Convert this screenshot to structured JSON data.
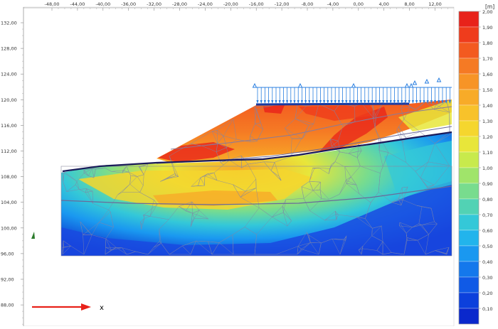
{
  "x_axis": {
    "ticks": [
      "-48,00",
      "-44,00",
      "-40,00",
      "-36,00",
      "-32,00",
      "-28,00",
      "-24,00",
      "-20,00",
      "-16,00",
      "-12,00",
      "-8,00",
      "-4,00",
      "0,00",
      "4,00",
      "8,00",
      "12,00"
    ]
  },
  "y_axis": {
    "ticks": [
      "132,00",
      "128,00",
      "124,00",
      "120,00",
      "116,00",
      "112,00",
      "108,00",
      "104,00",
      "100,00",
      "96,00",
      "92,00",
      "88,00"
    ]
  },
  "legend": {
    "unit": "[m]",
    "labels": [
      "2,00",
      "1,90",
      "1,80",
      "1,70",
      "1,60",
      "1,50",
      "1,40",
      "1,30",
      "1,20",
      "1,10",
      "1,00",
      "0,90",
      "0,80",
      "0,70",
      "0,60",
      "0,50",
      "0,40",
      "0,30",
      "0,20",
      "0,10"
    ],
    "colors": [
      "#e8221a",
      "#ef3c1c",
      "#f35a20",
      "#f57a24",
      "#f79426",
      "#f8ab28",
      "#f8c22a",
      "#f5d62e",
      "#e8e63a",
      "#c8ea4c",
      "#a0e46a",
      "#78dc8e",
      "#52d2b4",
      "#34c8d8",
      "#22b4ec",
      "#1a98f0",
      "#1478ec",
      "#105ae6",
      "#0c40dc",
      "#0a28cc"
    ]
  },
  "axis_indicator": {
    "label": "x",
    "arrow_color": "#e8221a"
  },
  "colors": {
    "plot_bg": "#ffffff",
    "mesh": "#8a8aa0",
    "terrain_line": "#1a1a5a",
    "load": "#2a7fe0",
    "border": "#888888"
  }
}
